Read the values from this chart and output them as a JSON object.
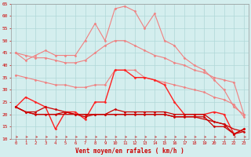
{
  "x": [
    0,
    1,
    2,
    3,
    4,
    5,
    6,
    7,
    8,
    9,
    10,
    11,
    12,
    13,
    14,
    15,
    16,
    17,
    18,
    19,
    20,
    21,
    22,
    23
  ],
  "series": [
    {
      "name": "max_gusts",
      "values": [
        45,
        42,
        44,
        46,
        44,
        44,
        44,
        50,
        57,
        50,
        63,
        64,
        62,
        55,
        61,
        50,
        48,
        43,
        40,
        38,
        34,
        30,
        23,
        20
      ],
      "color": "#f08080",
      "lw": 0.8,
      "marker": "D",
      "ms": 1.5
    },
    {
      "name": "avg_gusts_line",
      "values": [
        45,
        44,
        43,
        43,
        42,
        41,
        41,
        42,
        45,
        48,
        50,
        50,
        48,
        46,
        44,
        43,
        41,
        40,
        38,
        37,
        35,
        34,
        33,
        20
      ],
      "color": "#f08080",
      "lw": 0.8,
      "marker": "D",
      "ms": 1.5
    },
    {
      "name": "mid_series",
      "values": [
        36,
        35,
        34,
        33,
        32,
        32,
        31,
        31,
        32,
        32,
        38,
        38,
        38,
        35,
        34,
        33,
        32,
        31,
        30,
        29,
        27,
        26,
        24,
        19
      ],
      "color": "#f08080",
      "lw": 0.8,
      "marker": "D",
      "ms": 1.5
    },
    {
      "name": "strong_wind",
      "values": [
        23,
        27,
        25,
        23,
        14,
        21,
        21,
        18,
        25,
        25,
        38,
        38,
        35,
        35,
        34,
        32,
        25,
        20,
        20,
        20,
        21,
        20,
        12,
        14
      ],
      "color": "#ff2020",
      "lw": 1.0,
      "marker": "D",
      "ms": 1.5
    },
    {
      "name": "avg_wind",
      "values": [
        23,
        21,
        21,
        23,
        22,
        21,
        20,
        20,
        20,
        20,
        22,
        21,
        21,
        21,
        21,
        21,
        20,
        20,
        20,
        20,
        17,
        16,
        12,
        14
      ],
      "color": "#cc0000",
      "lw": 0.9,
      "marker": "D",
      "ms": 1.5
    },
    {
      "name": "min_wind1",
      "values": [
        23,
        21,
        20,
        20,
        20,
        21,
        20,
        19,
        20,
        20,
        20,
        20,
        20,
        20,
        20,
        20,
        19,
        19,
        19,
        19,
        15,
        15,
        12,
        13
      ],
      "color": "#cc0000",
      "lw": 0.9,
      "marker": "D",
      "ms": 1.5
    },
    {
      "name": "baseline_flat",
      "values": [
        23,
        21,
        20,
        20,
        20,
        20,
        20,
        20,
        20,
        20,
        20,
        20,
        20,
        20,
        20,
        20,
        19,
        19,
        19,
        18,
        17,
        16,
        14,
        13
      ],
      "color": "#cc0000",
      "lw": 0.9,
      "marker": null,
      "ms": 0
    }
  ],
  "xlabel": "Vent moyen/en rafales ( km/h )",
  "ylim": [
    10,
    65
  ],
  "xlim": [
    -0.5,
    23.5
  ],
  "yticks": [
    10,
    15,
    20,
    25,
    30,
    35,
    40,
    45,
    50,
    55,
    60,
    65
  ],
  "xticks": [
    0,
    1,
    2,
    3,
    4,
    5,
    6,
    7,
    8,
    9,
    10,
    11,
    12,
    13,
    14,
    15,
    16,
    17,
    18,
    19,
    20,
    21,
    22,
    23
  ],
  "bg_color": "#d4eeee",
  "grid_color": "#b0d8d8",
  "tick_label_color": "#cc0000",
  "xlabel_color": "#cc0000",
  "xlabel_fontsize": 5.5,
  "arrow_color": "#cc4444"
}
